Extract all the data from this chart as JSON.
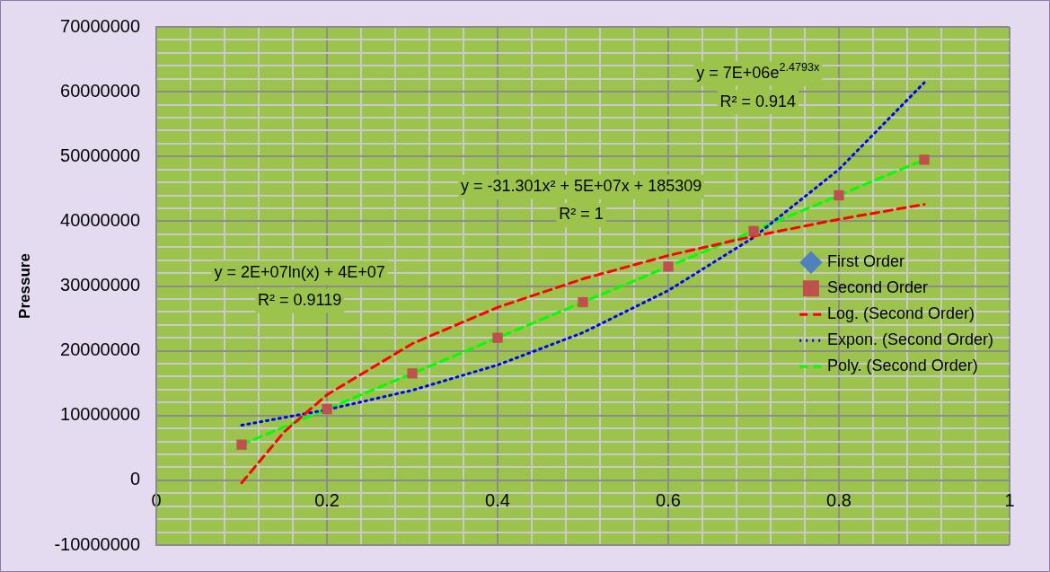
{
  "chart_data": {
    "type": "scatter",
    "ylabel": "Pressure",
    "x": [
      0.1,
      0.2,
      0.3,
      0.4,
      0.5,
      0.6,
      0.7,
      0.8,
      0.9
    ],
    "series": [
      {
        "name": "First Order",
        "color": "#4f81bd",
        "marker": "diamond",
        "values": [
          null,
          null,
          null,
          null,
          null,
          null,
          null,
          null,
          null
        ]
      },
      {
        "name": "Second Order",
        "color": "#c0504d",
        "marker": "square",
        "values": [
          5500000,
          11000000,
          16500000,
          22000000,
          27500000,
          33000000,
          38500000,
          44000000,
          49500000
        ]
      },
      {
        "name": "Log. (Second Order)",
        "type": "line",
        "color": "#ff0000",
        "line_style": "dashed",
        "marker": "none",
        "x": [
          0.1,
          0.15,
          0.2,
          0.3,
          0.4,
          0.5,
          0.6,
          0.7,
          0.8,
          0.9
        ],
        "values": [
          -400000,
          7500000,
          13200000,
          21100000,
          26700000,
          31100000,
          34700000,
          37700000,
          40300000,
          42600000
        ]
      },
      {
        "name": "Expon. (Second Order)",
        "type": "line",
        "color": "#0000ff",
        "line_style": "dotted",
        "marker": "none",
        "x": [
          0.1,
          0.2,
          0.3,
          0.4,
          0.5,
          0.6,
          0.7,
          0.8,
          0.9
        ],
        "values": [
          8500000,
          10900000,
          13900000,
          17800000,
          22800000,
          29300000,
          37500000,
          48000000,
          61400000
        ]
      },
      {
        "name": "Poly. (Second Order)",
        "type": "line",
        "color": "#00ff00",
        "line_style": "dashed",
        "marker": "none",
        "x": [
          0.1,
          0.2,
          0.3,
          0.4,
          0.5,
          0.6,
          0.7,
          0.8,
          0.9
        ],
        "values": [
          5500000,
          11000000,
          16500000,
          22000000,
          27500000,
          33000000,
          38500000,
          44000000,
          49500000
        ]
      }
    ],
    "xlim": [
      0,
      1
    ],
    "xticks": [
      0,
      {
        "value": 0.04,
        "label": null
      },
      {
        "value": 0.08,
        "label": null
      },
      {
        "value": 0.12,
        "label": null
      },
      {
        "value": 0.16,
        "label": null
      },
      0.2,
      {
        "value": 0.24,
        "label": null
      },
      {
        "value": 0.28,
        "label": null
      },
      {
        "value": 0.32,
        "label": null
      },
      {
        "value": 0.36,
        "label": null
      },
      0.4,
      {
        "value": 0.44,
        "label": null
      },
      {
        "value": 0.48,
        "label": null
      },
      {
        "value": 0.52,
        "label": null
      },
      {
        "value": 0.56,
        "label": null
      },
      0.6,
      {
        "value": 0.64,
        "label": null
      },
      {
        "value": 0.68,
        "label": null
      },
      {
        "value": 0.72,
        "label": null
      },
      {
        "value": 0.76,
        "label": null
      },
      0.8,
      {
        "value": 0.84,
        "label": null
      },
      {
        "value": 0.88,
        "label": null
      },
      {
        "value": 0.92,
        "label": null
      },
      {
        "value": 0.96,
        "label": null
      },
      1
    ],
    "ylim": [
      -10000000,
      70000000
    ],
    "yticks": [
      -10000000,
      {
        "value": -8000000,
        "label": null
      },
      {
        "value": -6000000,
        "label": null
      },
      {
        "value": -4000000,
        "label": null
      },
      {
        "value": -2000000,
        "label": null
      },
      0,
      {
        "value": 2000000,
        "label": null
      },
      {
        "value": 4000000,
        "label": null
      },
      {
        "value": 6000000,
        "label": null
      },
      {
        "value": 8000000,
        "label": null
      },
      10000000,
      {
        "value": 12000000,
        "label": null
      },
      {
        "value": 14000000,
        "label": null
      },
      {
        "value": 16000000,
        "label": null
      },
      {
        "value": 18000000,
        "label": null
      },
      20000000,
      {
        "value": 22000000,
        "label": null
      },
      {
        "value": 24000000,
        "label": null
      },
      {
        "value": 26000000,
        "label": null
      },
      {
        "value": 28000000,
        "label": null
      },
      30000000,
      {
        "value": 32000000,
        "label": null
      },
      {
        "value": 34000000,
        "label": null
      },
      {
        "value": 36000000,
        "label": null
      },
      {
        "value": 38000000,
        "label": null
      },
      40000000,
      {
        "value": 42000000,
        "label": null
      },
      {
        "value": 44000000,
        "label": null
      },
      {
        "value": 46000000,
        "label": null
      },
      {
        "value": 48000000,
        "label": null
      },
      50000000,
      {
        "value": 52000000,
        "label": null
      },
      {
        "value": 54000000,
        "label": null
      },
      {
        "value": 56000000,
        "label": null
      },
      {
        "value": 58000000,
        "label": null
      },
      60000000,
      {
        "value": 62000000,
        "label": null
      },
      {
        "value": 64000000,
        "label": null
      },
      {
        "value": 66000000,
        "label": null
      },
      {
        "value": 68000000,
        "label": null
      },
      70000000
    ],
    "grid": true,
    "legend": "right",
    "annotations": [
      "y = 7E+06e$^{2.4793x}$",
      "R² = 0.914",
      "y = -31.301x² + 5E+07x + 185309",
      "R² = 1",
      "y = 2E+07ln(x) + 4E+07",
      "R² = 0.9119"
    ]
  }
}
